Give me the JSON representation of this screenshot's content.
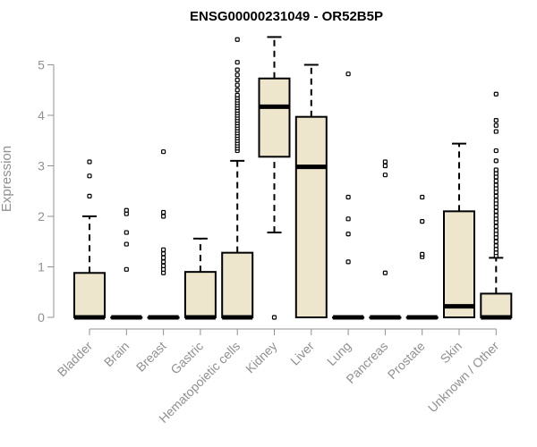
{
  "chart_data": {
    "type": "box",
    "title": "ENSG00000231049 - OR52B5P",
    "ylabel": "Expression",
    "xlabel": "",
    "ylim": [
      0,
      5.6
    ],
    "yticks": [
      0,
      1,
      2,
      3,
      4,
      5
    ],
    "grid": false,
    "legend": "none",
    "box_fill": "#ede6cd",
    "categories": [
      "Bladder",
      "Brain",
      "Breast",
      "Gastric",
      "Hematopoietic cells",
      "Kidney",
      "Liver",
      "Lung",
      "Pancreas",
      "Prostate",
      "Skin",
      "Unknown / Other"
    ],
    "boxes": [
      {
        "name": "Bladder",
        "min": 0,
        "q1": 0,
        "median": 0,
        "q3": 0.88,
        "max": 2.0,
        "outliers": [
          2.4,
          2.8,
          3.08
        ]
      },
      {
        "name": "Brain",
        "min": 0,
        "q1": 0,
        "median": 0,
        "q3": 0,
        "max": 0,
        "outliers": [
          0.95,
          1.45,
          1.68,
          2.05,
          2.12
        ]
      },
      {
        "name": "Breast",
        "min": 0,
        "q1": 0,
        "median": 0,
        "q3": 0,
        "max": 0,
        "outliers": [
          0.88,
          0.95,
          1.02,
          1.1,
          1.18,
          1.26,
          1.34,
          2.0,
          2.08,
          3.28
        ]
      },
      {
        "name": "Gastric",
        "min": 0,
        "q1": 0,
        "median": 0,
        "q3": 0.9,
        "max": 1.56,
        "outliers": []
      },
      {
        "name": "Hematopoietic cells",
        "min": 0,
        "q1": 0,
        "median": 0,
        "q3": 1.28,
        "max": 3.1,
        "outliers": [
          3.3,
          3.35,
          3.4,
          3.45,
          3.5,
          3.55,
          3.6,
          3.65,
          3.7,
          3.75,
          3.8,
          3.85,
          3.9,
          3.95,
          4.0,
          4.05,
          4.1,
          4.15,
          4.2,
          4.25,
          4.3,
          4.35,
          4.4,
          4.5,
          4.6,
          4.7,
          4.8,
          4.9,
          5.05,
          5.5
        ]
      },
      {
        "name": "Kidney",
        "min": 1.68,
        "q1": 3.18,
        "median": 4.17,
        "q3": 4.73,
        "max": 5.55,
        "outliers": [
          0
        ]
      },
      {
        "name": "Liver",
        "min": 0,
        "q1": 0,
        "median": 2.98,
        "q3": 3.97,
        "max": 5.0,
        "outliers": []
      },
      {
        "name": "Lung",
        "min": 0,
        "q1": 0,
        "median": 0,
        "q3": 0,
        "max": 0,
        "outliers": [
          1.1,
          1.65,
          1.95,
          2.38,
          4.82
        ]
      },
      {
        "name": "Pancreas",
        "min": 0,
        "q1": 0,
        "median": 0,
        "q3": 0,
        "max": 0,
        "outliers": [
          0.88,
          2.82,
          3.0,
          3.08
        ]
      },
      {
        "name": "Prostate",
        "min": 0,
        "q1": 0,
        "median": 0,
        "q3": 0,
        "max": 0,
        "outliers": [
          1.2,
          1.25,
          1.9,
          2.38
        ]
      },
      {
        "name": "Skin",
        "min": 0,
        "q1": 0,
        "median": 0.22,
        "q3": 2.1,
        "max": 3.44,
        "outliers": []
      },
      {
        "name": "Unknown / Other",
        "min": 0,
        "q1": 0,
        "median": 0,
        "q3": 0.47,
        "max": 1.18,
        "outliers": [
          1.22,
          1.28,
          1.35,
          1.42,
          1.5,
          1.58,
          1.65,
          1.72,
          1.8,
          1.88,
          1.95,
          2.02,
          2.1,
          2.18,
          2.25,
          2.32,
          2.4,
          2.48,
          2.55,
          2.62,
          2.7,
          2.78,
          2.85,
          2.92,
          3.1,
          3.3,
          3.68,
          3.8,
          3.9,
          4.42
        ]
      }
    ]
  }
}
